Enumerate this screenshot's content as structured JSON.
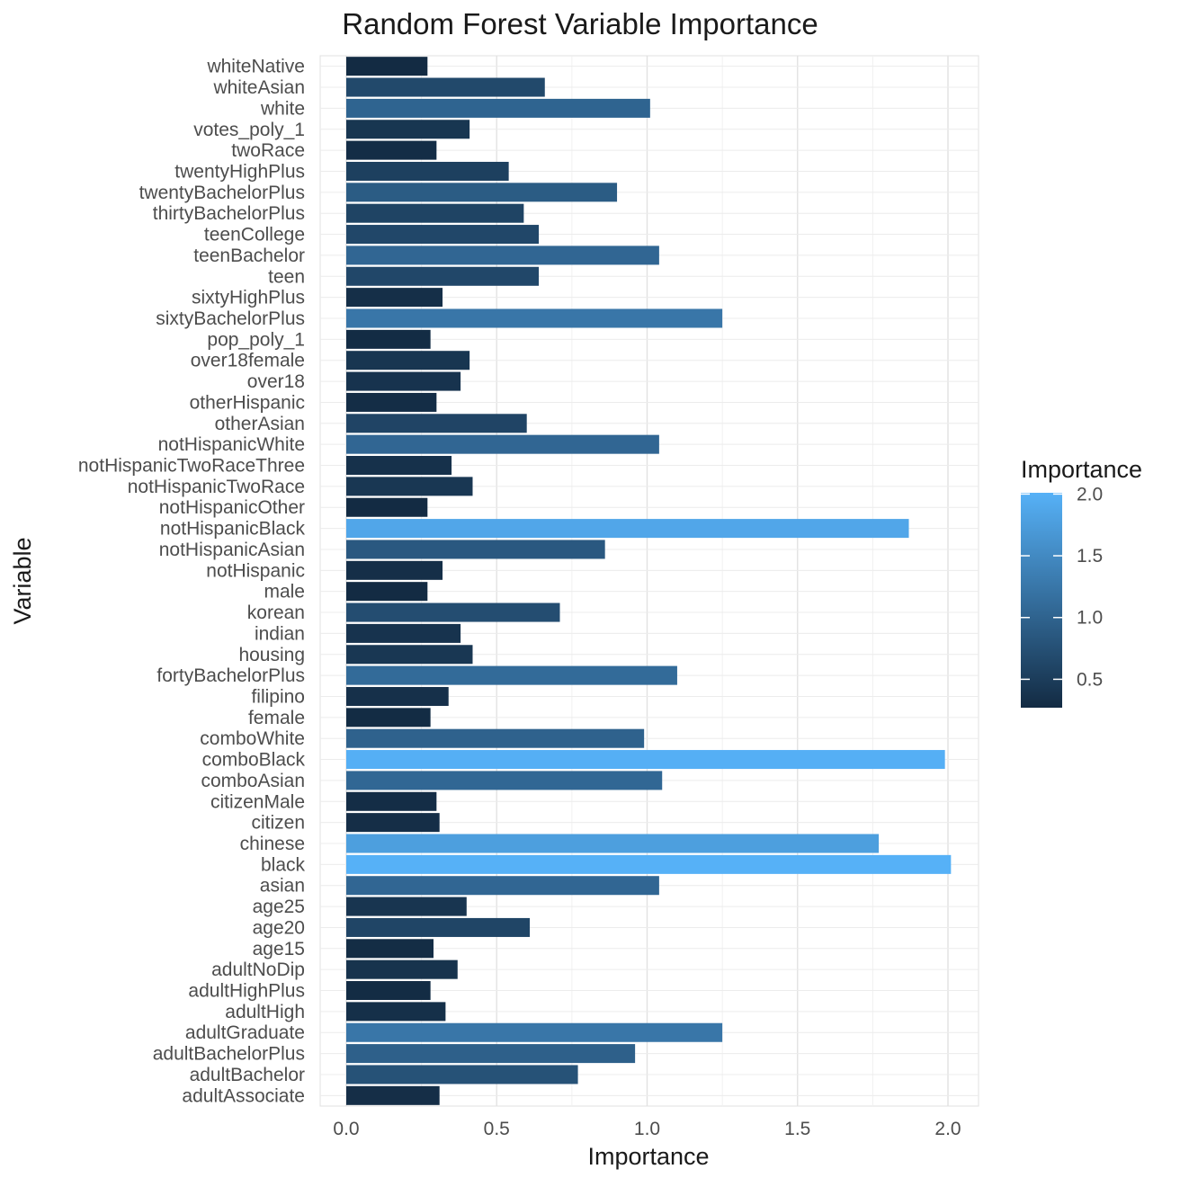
{
  "chart_data": {
    "type": "bar",
    "orientation": "horizontal",
    "title": "Random Forest Variable Importance",
    "xlabel": "Importance",
    "ylabel": "Variable",
    "xlim": [
      -0.09,
      2.1
    ],
    "xticks": [
      0.0,
      0.5,
      1.0,
      1.5,
      2.0
    ],
    "xtick_labels": [
      "0.0",
      "0.5",
      "1.0",
      "1.5",
      "2.0"
    ],
    "grid": true,
    "legend": {
      "title": "Importance",
      "placement": "right",
      "type": "colorbar",
      "range": [
        0.27,
        2.01
      ],
      "ticks": [
        0.5,
        1.0,
        1.5,
        2.0
      ],
      "tick_labels": [
        "0.5",
        "1.0",
        "1.5",
        "2.0"
      ],
      "color_low": "#132B43",
      "color_high": "#56B1F7"
    },
    "categories": [
      "whiteNative",
      "whiteAsian",
      "white",
      "votes_poly_1",
      "twoRace",
      "twentyHighPlus",
      "twentyBachelorPlus",
      "thirtyBachelorPlus",
      "teenCollege",
      "teenBachelor",
      "teen",
      "sixtyHighPlus",
      "sixtyBachelorPlus",
      "pop_poly_1",
      "over18female",
      "over18",
      "otherHispanic",
      "otherAsian",
      "notHispanicWhite",
      "notHispanicTwoRaceThree",
      "notHispanicTwoRace",
      "notHispanicOther",
      "notHispanicBlack",
      "notHispanicAsian",
      "notHispanic",
      "male",
      "korean",
      "indian",
      "housing",
      "fortyBachelorPlus",
      "filipino",
      "female",
      "comboWhite",
      "comboBlack",
      "comboAsian",
      "citizenMale",
      "citizen",
      "chinese",
      "black",
      "asian",
      "age25",
      "age20",
      "age15",
      "adultNoDip",
      "adultHighPlus",
      "adultHigh",
      "adultGraduate",
      "adultBachelorPlus",
      "adultBachelor",
      "adultAssociate"
    ],
    "values": [
      0.27,
      0.66,
      1.01,
      0.41,
      0.3,
      0.54,
      0.9,
      0.59,
      0.64,
      1.04,
      0.64,
      0.32,
      1.25,
      0.28,
      0.41,
      0.38,
      0.3,
      0.6,
      1.04,
      0.35,
      0.42,
      0.27,
      1.87,
      0.86,
      0.32,
      0.27,
      0.71,
      0.38,
      0.42,
      1.1,
      0.34,
      0.28,
      0.99,
      1.99,
      1.05,
      0.3,
      0.31,
      1.77,
      2.01,
      1.04,
      0.4,
      0.61,
      0.29,
      0.37,
      0.28,
      0.33,
      1.25,
      0.96,
      0.77,
      0.31
    ]
  }
}
